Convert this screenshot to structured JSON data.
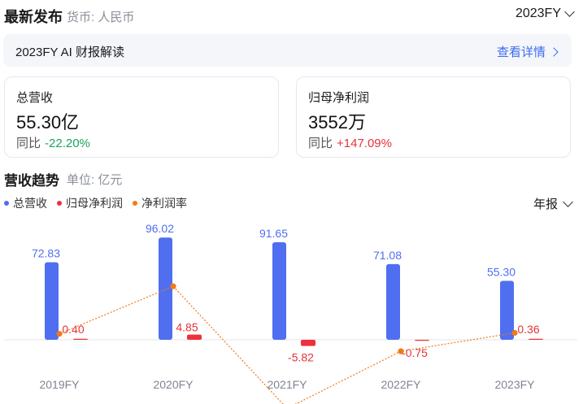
{
  "header": {
    "title": "最新发布",
    "currency": "货币: 人民币",
    "period": "2023FY"
  },
  "ai_summary": {
    "text": "2023FY AI 财报解读",
    "link": "查看详情"
  },
  "cards": [
    {
      "label": "总营收",
      "value": "55.30亿",
      "yoy_label": "同比",
      "yoy_value": "-22.20%",
      "direction": "down"
    },
    {
      "label": "归母净利润",
      "value": "3552万",
      "yoy_label": "同比",
      "yoy_value": "+147.09%",
      "direction": "up"
    }
  ],
  "trend": {
    "title": "营收趋势",
    "unit": "单位: 亿元",
    "frequency": "年报"
  },
  "colors": {
    "revenue": "#4f6ff0",
    "net_profit": "#f0303a",
    "margin": "#f07a1a",
    "text_blue": "#4f6ff0",
    "text_red": "#e5333a"
  },
  "chart_data": {
    "type": "bar",
    "categories": [
      "2019FY",
      "2020FY",
      "2021FY",
      "2022FY",
      "2023FY"
    ],
    "series": [
      {
        "name": "总营收",
        "kind": "bar",
        "values": [
          72.83,
          96.02,
          91.65,
          71.08,
          55.3
        ],
        "labels": [
          "72.83",
          "96.02",
          "91.65",
          "71.08",
          "55.30"
        ]
      },
      {
        "name": "归母净利润",
        "kind": "bar",
        "values": [
          0.4,
          4.85,
          -5.82,
          -0.75,
          0.36
        ],
        "labels": [
          "0.40",
          "4.85",
          "-5.82",
          "-0.75",
          "0.36"
        ]
      },
      {
        "name": "净利润率",
        "kind": "line",
        "style": "dotted",
        "values": [
          0.55,
          4.95,
          -6.35,
          -1.06,
          0.64
        ]
      }
    ]
  }
}
